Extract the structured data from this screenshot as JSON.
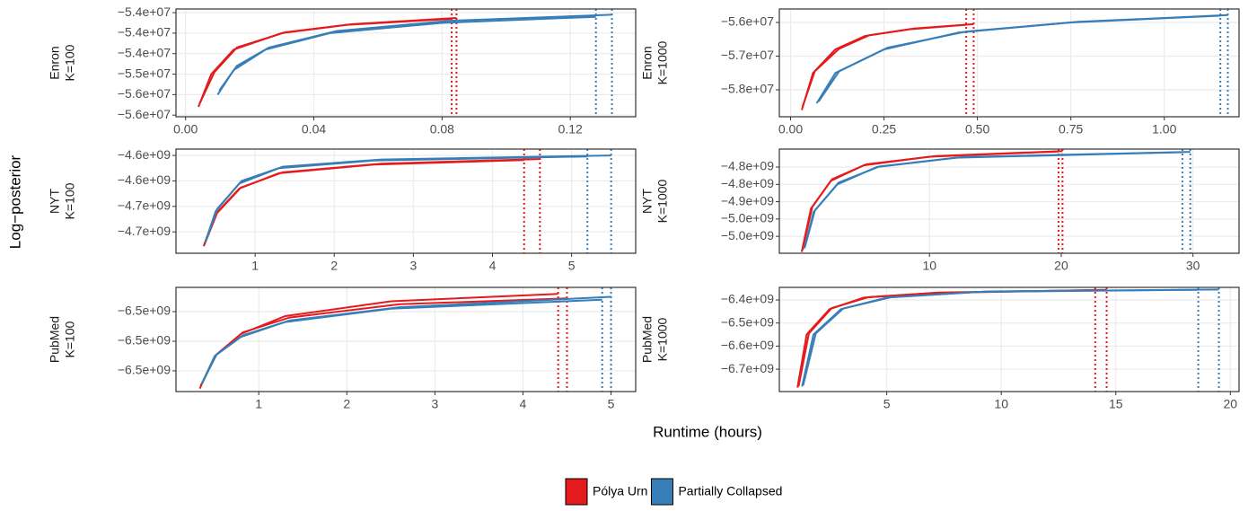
{
  "xlabel": "Runtime (hours)",
  "ylabel": "Log−posterior",
  "chart_data": [
    {
      "type": "line",
      "panel": [
        "Enron",
        "K=100"
      ],
      "xlim": [
        -0.003,
        0.1404
      ],
      "ylim": [
        -56040000,
        -53410000
      ],
      "xticks": [
        {
          "value": 0,
          "label": "0.00"
        },
        {
          "value": 0.04,
          "label": "0.04"
        },
        {
          "value": 0.08,
          "label": "0.08"
        },
        {
          "value": 0.12,
          "label": "0.12"
        }
      ],
      "yticks": [
        {
          "value": -53500000,
          "label": "−5.4e+07"
        },
        {
          "value": -54000000,
          "label": "−5.4e+07"
        },
        {
          "value": -54500000,
          "label": "−5.4e+07"
        },
        {
          "value": -55000000,
          "label": "−5.5e+07"
        },
        {
          "value": -55500000,
          "label": "−5.6e+07"
        },
        {
          "value": -56000000,
          "label": "−5.6e+07"
        }
      ],
      "grid": true,
      "series": [
        {
          "name": "Pólya Urn",
          "color": "#e41a1c",
          "x": [
            0.004,
            0.008,
            0.015,
            0.03,
            0.05,
            0.083
          ],
          "values": [
            -55800000,
            -55000000,
            -54400000,
            -54000000,
            -53800000,
            -53650000
          ]
        },
        {
          "name": "Pólya Urn",
          "color": "#e41a1c",
          "x": [
            0.0045,
            0.009,
            0.016,
            0.031,
            0.052,
            0.0845
          ],
          "values": [
            -55700000,
            -54950000,
            -54350000,
            -53980000,
            -53780000,
            -53630000
          ]
        },
        {
          "name": "Partially Collapsed",
          "color": "#377eb8",
          "x": [
            0.01,
            0.015,
            0.025,
            0.045,
            0.08,
            0.128
          ],
          "values": [
            -55500000,
            -54900000,
            -54400000,
            -54000000,
            -53750000,
            -53600000
          ]
        },
        {
          "name": "Partially Collapsed",
          "color": "#377eb8",
          "x": [
            0.0105,
            0.016,
            0.026,
            0.047,
            0.082,
            0.133
          ],
          "values": [
            -55400000,
            -54800000,
            -54350000,
            -53950000,
            -53700000,
            -53550000
          ]
        }
      ]
    },
    {
      "type": "line",
      "panel": [
        "Enron",
        "K=1000"
      ],
      "xlim": [
        -0.03,
        1.2
      ],
      "ylim": [
        -58800000,
        -55600000
      ],
      "xticks": [
        {
          "value": 0,
          "label": "0.00"
        },
        {
          "value": 0.25,
          "label": "0.25"
        },
        {
          "value": 0.5,
          "label": "0.50"
        },
        {
          "value": 0.75,
          "label": "0.75"
        },
        {
          "value": 1,
          "label": "1.00"
        }
      ],
      "yticks": [
        {
          "value": -56000000,
          "label": "−5.6e+07"
        },
        {
          "value": -57000000,
          "label": "−5.7e+07"
        },
        {
          "value": -58000000,
          "label": "−5.8e+07"
        }
      ],
      "grid": true,
      "series": [
        {
          "name": "Pólya Urn",
          "color": "#e41a1c",
          "x": [
            0.03,
            0.06,
            0.12,
            0.2,
            0.32,
            0.47
          ],
          "values": [
            -58600000,
            -57500000,
            -56800000,
            -56400000,
            -56200000,
            -56070000
          ]
        },
        {
          "name": "Pólya Urn",
          "color": "#e41a1c",
          "x": [
            0.032,
            0.065,
            0.13,
            0.21,
            0.33,
            0.49
          ],
          "values": [
            -58500000,
            -57450000,
            -56780000,
            -56380000,
            -56180000,
            -56050000
          ]
        },
        {
          "name": "Partially Collapsed",
          "color": "#377eb8",
          "x": [
            0.07,
            0.12,
            0.25,
            0.45,
            0.75,
            1.15
          ],
          "values": [
            -58400000,
            -57500000,
            -56800000,
            -56300000,
            -56000000,
            -55800000
          ]
        },
        {
          "name": "Partially Collapsed",
          "color": "#377eb8",
          "x": [
            0.075,
            0.13,
            0.26,
            0.47,
            0.77,
            1.17
          ],
          "values": [
            -58350000,
            -57450000,
            -56750000,
            -56270000,
            -55980000,
            -55780000
          ]
        }
      ]
    },
    {
      "type": "line",
      "panel": [
        "NYT",
        "K=100"
      ],
      "xlim": [
        0,
        5.81
      ],
      "ylim": [
        -4767000000,
        -4562500000
      ],
      "xticks": [
        1,
        2,
        3,
        4,
        5
      ],
      "yticks": [
        {
          "value": -4575000000,
          "label": "−4.6e+09"
        },
        {
          "value": -4625000000,
          "label": "−4.6e+09"
        },
        {
          "value": -4675000000,
          "label": "−4.7e+09"
        },
        {
          "value": -4725000000,
          "label": "−4.7e+09"
        }
      ],
      "grid": true,
      "series": [
        {
          "name": "Pólya Urn",
          "color": "#e41a1c",
          "x": [
            0.35,
            0.5,
            0.8,
            1.3,
            2.5,
            4.4
          ],
          "values": [
            -4753000000.0,
            -4690000000.0,
            -4640000000.0,
            -4610000000.0,
            -4593000000.0,
            -4584000000.0
          ]
        },
        {
          "name": "Pólya Urn",
          "color": "#e41a1c",
          "x": [
            0.36,
            0.52,
            0.82,
            1.35,
            2.6,
            4.6
          ],
          "values": [
            -4750000000.0,
            -4688000000.0,
            -4638000000.0,
            -4608000000.0,
            -4591000000.0,
            -4582000000.0
          ]
        },
        {
          "name": "Partially Collapsed",
          "color": "#377eb8",
          "x": [
            0.37,
            0.5,
            0.8,
            1.3,
            2.5,
            5.2
          ],
          "values": [
            -4745000000.0,
            -4685000000.0,
            -4630000000.0,
            -4600000000.0,
            -4585000000.0,
            -4577000000.0
          ]
        },
        {
          "name": "Partially Collapsed",
          "color": "#377eb8",
          "x": [
            0.38,
            0.52,
            0.83,
            1.35,
            2.6,
            5.5
          ],
          "values": [
            -4742000000.0,
            -4680000000.0,
            -4625000000.0,
            -4597000000.0,
            -4583000000.0,
            -4575000000.0
          ]
        }
      ]
    },
    {
      "type": "line",
      "panel": [
        "NYT",
        "K=1000"
      ],
      "xlim": [
        -1.4,
        33.5
      ],
      "ylim": [
        -5049000000,
        -4748000000
      ],
      "xticks": [
        10,
        20,
        30
      ],
      "yticks": [
        {
          "value": -4800000000,
          "label": "−4.8e+09"
        },
        {
          "value": -4850000000,
          "label": "−4.8e+09"
        },
        {
          "value": -4900000000,
          "label": "−4.9e+09"
        },
        {
          "value": -4950000000,
          "label": "−5.0e+09"
        },
        {
          "value": -5000000000,
          "label": "−5.0e+09"
        }
      ],
      "grid": true,
      "series": [
        {
          "name": "Pólya Urn",
          "color": "#e41a1c",
          "x": [
            0.3,
            1,
            2.5,
            5,
            10,
            19.8
          ],
          "values": [
            -5045000000.0,
            -4920000000.0,
            -4840000000.0,
            -4795000000.0,
            -4770000000.0,
            -4755000000.0
          ]
        },
        {
          "name": "Pólya Urn",
          "color": "#e41a1c",
          "x": [
            0.35,
            1.1,
            2.6,
            5.2,
            10.5,
            20.1
          ],
          "values": [
            -5040000000.0,
            -4915000000.0,
            -4835000000.0,
            -4792000000.0,
            -4768000000.0,
            -4754000000.0
          ]
        },
        {
          "name": "Partially Collapsed",
          "color": "#377eb8",
          "x": [
            0.5,
            1.2,
            3,
            6,
            12,
            29.2
          ],
          "values": [
            -5035000000.0,
            -4930000000.0,
            -4850000000.0,
            -4800000000.0,
            -4773000000.0,
            -4757000000.0
          ]
        },
        {
          "name": "Partially Collapsed",
          "color": "#377eb8",
          "x": [
            0.55,
            1.3,
            3.1,
            6.2,
            12.5,
            29.8
          ],
          "values": [
            -5030000000.0,
            -4925000000.0,
            -4845000000.0,
            -4798000000.0,
            -4771000000.0,
            -4756000000.0
          ]
        }
      ]
    },
    {
      "type": "line",
      "panel": [
        "PubMed",
        "K=100"
      ],
      "xlim": [
        0.06,
        5.28
      ],
      "ylim": [
        -6524000000,
        -6453600000
      ],
      "xticks": [
        1,
        2,
        3,
        4,
        5
      ],
      "yticks": [
        {
          "value": -6470000000,
          "label": "−6.5e+09"
        },
        {
          "value": -6490000000,
          "label": "−6.5e+09"
        },
        {
          "value": -6510000000,
          "label": "−6.5e+09"
        }
      ],
      "grid": true,
      "series": [
        {
          "name": "Pólya Urn",
          "color": "#e41a1c",
          "x": [
            0.33,
            0.5,
            0.8,
            1.3,
            2.5,
            4.4
          ],
          "values": [
            -6522000000.0,
            -6500000000.0,
            -6485000000.0,
            -6473000000.0,
            -6463000000.0,
            -6458000000.0
          ]
        },
        {
          "name": "Pólya Urn",
          "color": "#e41a1c",
          "x": [
            0.34,
            0.52,
            0.82,
            1.35,
            2.6,
            4.5
          ],
          "values": [
            -6520000000.0,
            -6499000000.0,
            -6484000000.0,
            -6474000000.0,
            -6465000000.0,
            -6461000000.0
          ]
        },
        {
          "name": "Partially Collapsed",
          "color": "#377eb8",
          "x": [
            0.35,
            0.5,
            0.8,
            1.3,
            2.5,
            4.9
          ],
          "values": [
            -6519000000.0,
            -6500000000.0,
            -6487000000.0,
            -6477000000.0,
            -6468000000.0,
            -6462000000.0
          ]
        },
        {
          "name": "Partially Collapsed",
          "color": "#377eb8",
          "x": [
            0.36,
            0.52,
            0.82,
            1.35,
            2.6,
            5.0
          ],
          "values": [
            -6518000000.0,
            -6499000000.0,
            -6486000000.0,
            -6476000000.0,
            -6467000000.0,
            -6460000000.0
          ]
        }
      ]
    },
    {
      "type": "line",
      "panel": [
        "PubMed",
        "K=1000"
      ],
      "xlim": [
        0.31,
        20.38
      ],
      "ylim": [
        -6797000000,
        -6345500000
      ],
      "xticks": [
        5,
        10,
        15,
        20
      ],
      "yticks": [
        {
          "value": -6400000000,
          "label": "−6.4e+09"
        },
        {
          "value": -6500000000,
          "label": "−6.5e+09"
        },
        {
          "value": -6600000000,
          "label": "−6.6e+09"
        },
        {
          "value": -6700000000,
          "label": "−6.7e+09"
        }
      ],
      "grid": true,
      "series": [
        {
          "name": "Pólya Urn",
          "color": "#e41a1c",
          "x": [
            1.1,
            1.5,
            2.5,
            4,
            7,
            14.1
          ],
          "values": [
            -6780000000.0,
            -6550000000.0,
            -6440000000.0,
            -6390000000.0,
            -6370000000.0,
            -6357000000.0
          ]
        },
        {
          "name": "Pólya Urn",
          "color": "#e41a1c",
          "x": [
            1.15,
            1.6,
            2.6,
            4.2,
            7.3,
            14.6
          ],
          "values": [
            -6775000000.0,
            -6545000000.0,
            -6435000000.0,
            -6388000000.0,
            -6368000000.0,
            -6356000000.0
          ]
        },
        {
          "name": "Partially Collapsed",
          "color": "#377eb8",
          "x": [
            1.3,
            1.8,
            3,
            5,
            9,
            18.6
          ],
          "values": [
            -6775000000.0,
            -6550000000.0,
            -6440000000.0,
            -6390000000.0,
            -6365000000.0,
            -6356000000.0
          ]
        },
        {
          "name": "Partially Collapsed",
          "color": "#377eb8",
          "x": [
            1.35,
            1.9,
            3.1,
            5.2,
            9.4,
            19.5
          ],
          "values": [
            -6770000000.0,
            -6545000000.0,
            -6437000000.0,
            -6388000000.0,
            -6363000000.0,
            -6355000000.0
          ]
        }
      ]
    }
  ]
}
